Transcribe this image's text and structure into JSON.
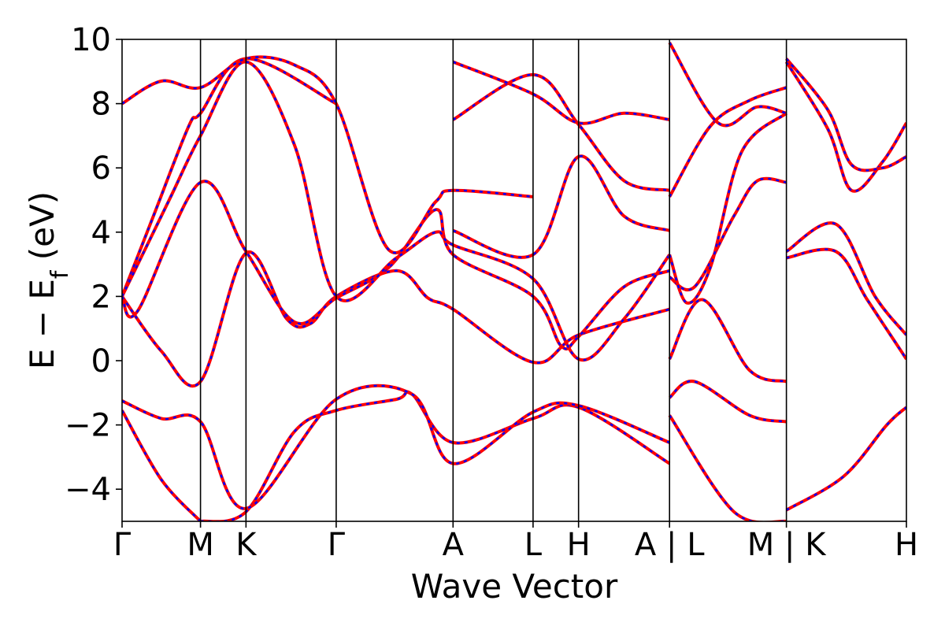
{
  "chart_data": {
    "type": "line",
    "xlabel": "Wave Vector",
    "ylabel": "E − E",
    "ylabel_subscript": "f",
    "ylabel_unit": " (eV)",
    "ylim": [
      -5,
      10
    ],
    "yticks": [
      -4,
      -2,
      0,
      2,
      4,
      6,
      8,
      10
    ],
    "ytick_labels": [
      "−4",
      "−2",
      "0",
      "2",
      "4",
      "6",
      "8",
      "10"
    ],
    "xlim": [
      0,
      10
    ],
    "xticks": [
      {
        "x": 0.0,
        "label": "Γ"
      },
      {
        "x": 1.0,
        "label": "M"
      },
      {
        "x": 1.58,
        "label": "K"
      },
      {
        "x": 2.73,
        "label": "Γ"
      },
      {
        "x": 4.22,
        "label": "A"
      },
      {
        "x": 5.24,
        "label": "L"
      },
      {
        "x": 5.82,
        "label": "H"
      },
      {
        "x": 6.98,
        "label": "A | L"
      },
      {
        "x": 8.47,
        "label": "M | K"
      },
      {
        "x": 10.0,
        "label": "H"
      }
    ],
    "grid": false,
    "line_colors": {
      "red": "#ff0000",
      "blue": "#0000ff"
    },
    "bands": [
      [
        [
          0,
          -1.55
        ],
        [
          0.5,
          -3.7
        ],
        [
          1.0,
          -5.0
        ]
      ],
      [
        [
          1.0,
          -5.0
        ],
        [
          1.58,
          -4.7
        ],
        [
          2.2,
          -2.2
        ],
        [
          2.73,
          -1.55
        ],
        [
          3.5,
          -1.2
        ],
        [
          3.7,
          -1.05
        ],
        [
          4.22,
          -2.55
        ],
        [
          5.24,
          -1.8
        ],
        [
          5.82,
          -1.45
        ],
        [
          6.98,
          -3.2
        ]
      ],
      [
        [
          0,
          -1.25
        ],
        [
          0.5,
          -1.8
        ],
        [
          1.0,
          -1.9
        ],
        [
          1.58,
          -4.6
        ],
        [
          2.73,
          -1.2
        ],
        [
          3.7,
          -1.05
        ],
        [
          4.22,
          -3.2
        ],
        [
          5.24,
          -1.6
        ],
        [
          5.82,
          -1.4
        ],
        [
          6.98,
          -2.55
        ]
      ],
      [
        [
          0,
          2.0
        ],
        [
          0.5,
          0.3
        ],
        [
          1.0,
          -0.65
        ],
        [
          1.58,
          3.35
        ],
        [
          2.1,
          1.3
        ],
        [
          2.4,
          1.15
        ],
        [
          2.73,
          2.0
        ],
        [
          3.5,
          2.8
        ],
        [
          3.9,
          1.95
        ],
        [
          4.22,
          1.6
        ],
        [
          5.24,
          -0.05
        ],
        [
          5.82,
          0.8
        ],
        [
          6.98,
          1.6
        ]
      ],
      [
        [
          0,
          2.0
        ],
        [
          0.2,
          1.55
        ],
        [
          1.0,
          5.55
        ],
        [
          1.58,
          3.4
        ],
        [
          2.2,
          1.2
        ],
        [
          2.73,
          1.95
        ],
        [
          3.4,
          2.9
        ],
        [
          4.0,
          4.7
        ],
        [
          4.22,
          3.3
        ],
        [
          5.24,
          2.0
        ],
        [
          5.6,
          0.45
        ],
        [
          5.82,
          0.75
        ],
        [
          6.4,
          2.3
        ],
        [
          6.98,
          2.8
        ]
      ],
      [
        [
          0,
          2.0
        ],
        [
          0.4,
          4.5
        ],
        [
          0.85,
          7.3
        ],
        [
          1.0,
          7.7
        ],
        [
          1.58,
          9.4
        ],
        [
          2.73,
          8.0
        ]
      ],
      [
        [
          0,
          2.0
        ],
        [
          0.6,
          5.0
        ],
        [
          1.0,
          7.0
        ],
        [
          1.58,
          9.3
        ],
        [
          2.2,
          6.7
        ],
        [
          2.73,
          2.0
        ],
        [
          3.5,
          3.2
        ],
        [
          4.0,
          4.0
        ],
        [
          4.22,
          3.6
        ],
        [
          5.24,
          2.55
        ],
        [
          5.82,
          0.05
        ],
        [
          6.4,
          1.3
        ],
        [
          6.98,
          3.3
        ]
      ],
      [
        [
          0,
          8.0
        ],
        [
          0.5,
          8.7
        ],
        [
          1.0,
          8.5
        ],
        [
          1.58,
          9.4
        ],
        [
          2.2,
          9.2
        ],
        [
          2.73,
          8.0
        ],
        [
          3.4,
          3.45
        ],
        [
          4.0,
          4.95
        ],
        [
          4.22,
          5.3
        ],
        [
          5.24,
          5.1
        ]
      ],
      [
        [
          4.22,
          7.5
        ],
        [
          5.24,
          8.9
        ],
        [
          5.82,
          7.35
        ],
        [
          6.4,
          5.6
        ],
        [
          6.98,
          5.3
        ]
      ],
      [
        [
          4.22,
          4.05
        ],
        [
          5.24,
          3.3
        ],
        [
          5.82,
          6.35
        ],
        [
          6.4,
          4.5
        ],
        [
          6.98,
          4.05
        ]
      ],
      [
        [
          4.22,
          9.3
        ],
        [
          5.24,
          8.3
        ],
        [
          5.82,
          7.4
        ],
        [
          6.4,
          7.7
        ],
        [
          6.98,
          7.5
        ]
      ],
      [
        [
          6.98,
          -1.7
        ],
        [
          7.8,
          -4.7
        ],
        [
          8.47,
          -5.0
        ]
      ],
      [
        [
          6.98,
          -1.15
        ],
        [
          7.3,
          -0.65
        ],
        [
          8.0,
          -1.7
        ],
        [
          8.47,
          -1.9
        ]
      ],
      [
        [
          6.98,
          0.05
        ],
        [
          7.4,
          1.9
        ],
        [
          8.0,
          -0.3
        ],
        [
          8.47,
          -0.65
        ]
      ],
      [
        [
          6.98,
          2.6
        ],
        [
          7.3,
          2.3
        ],
        [
          7.8,
          4.5
        ],
        [
          8.1,
          5.6
        ],
        [
          8.47,
          5.55
        ]
      ],
      [
        [
          6.98,
          3.3
        ],
        [
          7.2,
          1.8
        ],
        [
          7.5,
          2.9
        ],
        [
          7.9,
          6.5
        ],
        [
          8.47,
          7.7
        ]
      ],
      [
        [
          6.98,
          5.1
        ],
        [
          7.5,
          7.3
        ],
        [
          8.0,
          8.1
        ],
        [
          8.47,
          8.5
        ]
      ],
      [
        [
          6.98,
          9.9
        ],
        [
          7.6,
          7.4
        ],
        [
          8.1,
          7.9
        ],
        [
          8.47,
          7.7
        ]
      ],
      [
        [
          8.47,
          -4.65
        ],
        [
          9.2,
          -3.6
        ],
        [
          9.75,
          -2.0
        ],
        [
          10.0,
          -1.45
        ]
      ],
      [
        [
          8.47,
          3.2
        ],
        [
          9.1,
          3.4
        ],
        [
          9.5,
          1.9
        ],
        [
          10.0,
          0.05
        ]
      ],
      [
        [
          8.47,
          3.4
        ],
        [
          9.1,
          4.25
        ],
        [
          9.6,
          2.0
        ],
        [
          10.0,
          0.8
        ]
      ],
      [
        [
          8.47,
          9.3
        ],
        [
          9.0,
          7.2
        ],
        [
          9.3,
          5.3
        ],
        [
          9.7,
          6.2
        ],
        [
          10.0,
          7.4
        ]
      ],
      [
        [
          8.47,
          9.4
        ],
        [
          9.0,
          7.8
        ],
        [
          9.3,
          6.1
        ],
        [
          9.7,
          6.0
        ],
        [
          10.0,
          6.35
        ]
      ]
    ]
  }
}
